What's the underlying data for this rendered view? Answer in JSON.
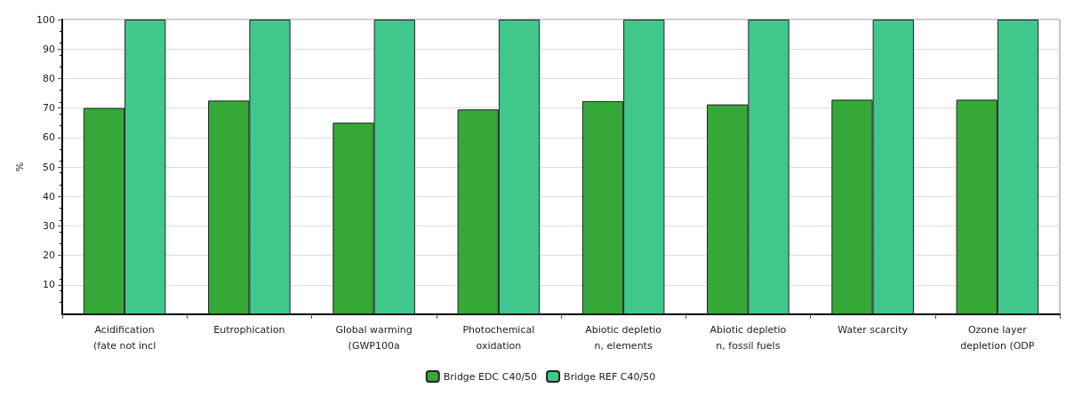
{
  "chart_data": {
    "type": "bar",
    "ylabel": "%",
    "categories": [
      "Acidification\n(fate not incl",
      "Eutrophication",
      "Global warming\n(GWP100a",
      "Photochemical\noxidation",
      "Abiotic depletio\nn, elements",
      "Abiotic depletio\nn, fossil fuels",
      "Water scarcity",
      "Ozone layer\ndepletion (ODP"
    ],
    "series": [
      {
        "name": "Bridge EDC C40/50",
        "color": "#35a838",
        "values": [
          70,
          72.5,
          65,
          69.5,
          72.3,
          71.2,
          72.8,
          72.8
        ]
      },
      {
        "name": "Bridge REF C40/50",
        "color": "#40c78c",
        "values": [
          100,
          100,
          100,
          100,
          100,
          100,
          100,
          100
        ]
      }
    ],
    "ylim": [
      0,
      100
    ],
    "yticks": [
      10,
      20,
      30,
      40,
      50,
      60,
      70,
      80,
      90,
      100
    ],
    "grid": "y",
    "legend": "bottom"
  }
}
